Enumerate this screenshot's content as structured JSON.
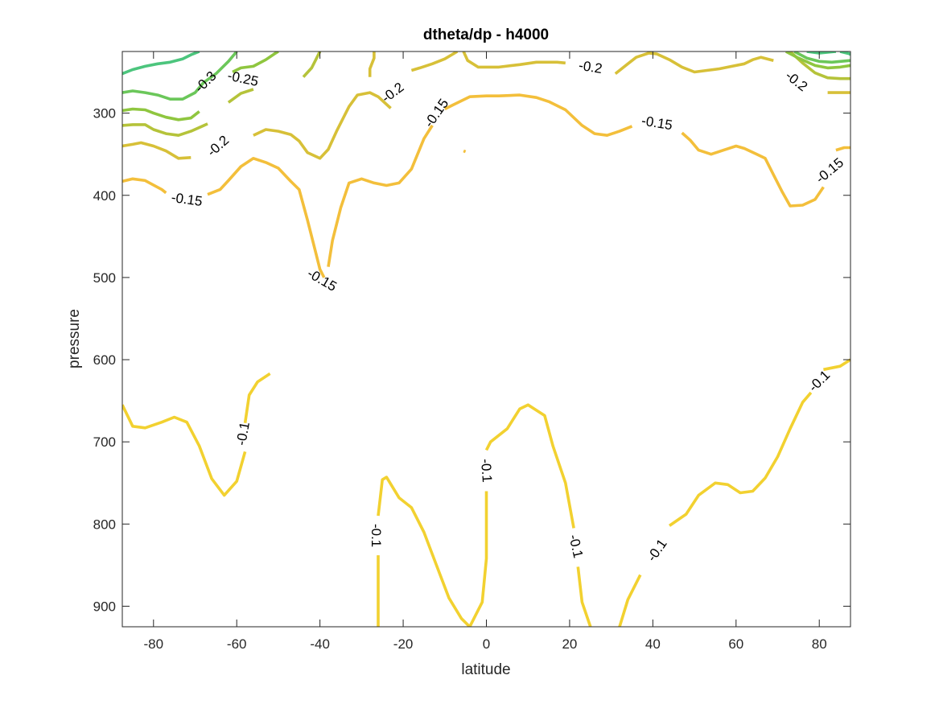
{
  "chart_data": {
    "type": "contour",
    "title": "dtheta/dp - h4000",
    "xlabel": "latitude",
    "ylabel": "pressure",
    "xlim": [
      -87.5,
      87.5
    ],
    "ylim": [
      225,
      925
    ],
    "y_reversed": true,
    "grid": false,
    "legend": "none",
    "x_ticks": [
      -80,
      -60,
      -40,
      -20,
      0,
      20,
      40,
      60,
      80
    ],
    "x_tick_labels": [
      "-80",
      "-60",
      "-40",
      "-20",
      "0",
      "20",
      "40",
      "60",
      "80"
    ],
    "y_ticks": [
      300,
      400,
      500,
      600,
      700,
      800,
      900
    ],
    "y_tick_labels": [
      "300",
      "400",
      "500",
      "600",
      "700",
      "800",
      "900"
    ],
    "colors": {
      "-0.1": "#f2d130",
      "-0.15": "#f3bf3b",
      "-0.2": "#d7c038",
      "-0.25": "#b5c33a",
      "-0.3": "#8fc63f",
      "-0.35": "#6bc75a",
      "-0.4": "#4cc57d"
    },
    "series": [
      {
        "level": -0.1,
        "points": [
          [
            -87.5,
            655
          ],
          [
            -85,
            681
          ],
          [
            -82,
            683
          ],
          [
            -78,
            676
          ],
          [
            -75,
            670
          ],
          [
            -72,
            676
          ],
          [
            -69,
            705
          ],
          [
            -66,
            745
          ],
          [
            -63,
            765
          ],
          [
            -60,
            748
          ],
          [
            -58,
            712
          ]
        ]
      },
      {
        "level": -0.1,
        "points": [
          [
            -58,
            677
          ],
          [
            -57,
            643
          ],
          [
            -55,
            627
          ],
          [
            -52,
            617
          ]
        ]
      },
      {
        "level": -0.1,
        "points": [
          [
            -26,
            925
          ],
          [
            -26,
            838
          ]
        ]
      },
      {
        "level": -0.1,
        "points": [
          [
            -26,
            790
          ],
          [
            -25,
            746
          ],
          [
            -24,
            743
          ],
          [
            -21,
            768
          ],
          [
            -18,
            780
          ],
          [
            -15,
            810
          ],
          [
            -12,
            850
          ],
          [
            -9,
            890
          ],
          [
            -6,
            915
          ],
          [
            -4,
            925
          ]
        ]
      },
      {
        "level": -0.1,
        "points": [
          [
            -4,
            925
          ],
          [
            -1,
            895
          ],
          [
            0,
            842
          ],
          [
            0,
            760
          ]
        ]
      },
      {
        "level": -0.1,
        "points": [
          [
            0,
            710
          ],
          [
            1,
            700
          ],
          [
            5,
            684
          ],
          [
            8,
            660
          ],
          [
            10,
            655
          ],
          [
            14,
            668
          ],
          [
            16,
            705
          ],
          [
            19,
            750
          ],
          [
            21,
            805
          ]
        ]
      },
      {
        "level": -0.1,
        "points": [
          [
            22,
            852
          ],
          [
            23,
            895
          ],
          [
            25,
            925
          ]
        ]
      },
      {
        "level": -0.1,
        "points": [
          [
            32,
            925
          ],
          [
            34,
            892
          ],
          [
            37,
            862
          ]
        ]
      },
      {
        "level": -0.1,
        "points": [
          [
            44,
            802
          ],
          [
            48,
            788
          ],
          [
            51,
            765
          ],
          [
            55,
            750
          ],
          [
            58,
            752
          ],
          [
            61,
            762
          ],
          [
            64,
            760
          ],
          [
            67,
            744
          ],
          [
            70,
            718
          ],
          [
            73,
            684
          ],
          [
            76,
            652
          ],
          [
            78,
            640
          ]
        ]
      },
      {
        "level": -0.1,
        "points": [
          [
            81,
            612
          ],
          [
            85,
            608
          ],
          [
            87.5,
            600
          ]
        ]
      },
      {
        "level": -0.15,
        "points": [
          [
            -87.5,
            383
          ],
          [
            -85,
            380
          ],
          [
            -82,
            382
          ],
          [
            -78,
            393
          ],
          [
            -77,
            397
          ]
        ]
      },
      {
        "level": -0.15,
        "points": [
          [
            -67,
            399
          ],
          [
            -64,
            393
          ],
          [
            -62,
            382
          ],
          [
            -59,
            365
          ],
          [
            -56,
            355
          ],
          [
            -53,
            360
          ],
          [
            -50,
            367
          ],
          [
            -47,
            383
          ],
          [
            -45,
            393
          ],
          [
            -43,
            430
          ],
          [
            -41,
            470
          ],
          [
            -40,
            490
          ],
          [
            -39,
            500
          ]
        ]
      },
      {
        "level": -0.15,
        "points": [
          [
            -38,
            487
          ],
          [
            -37,
            455
          ],
          [
            -35,
            415
          ],
          [
            -33,
            385
          ],
          [
            -30,
            380
          ],
          [
            -27,
            385
          ],
          [
            -24,
            388
          ],
          [
            -21,
            385
          ],
          [
            -18,
            368
          ],
          [
            -15,
            331
          ],
          [
            -13,
            315
          ]
        ]
      },
      {
        "level": -0.15,
        "points": [
          [
            -10,
            295
          ],
          [
            -8,
            290
          ],
          [
            -4,
            280
          ],
          [
            0,
            279
          ],
          [
            3,
            279
          ],
          [
            8,
            278
          ],
          [
            12,
            281
          ],
          [
            15,
            286
          ],
          [
            19,
            296
          ],
          [
            23,
            315
          ],
          [
            26,
            325
          ],
          [
            29,
            327
          ],
          [
            32,
            322
          ],
          [
            35,
            316
          ]
        ]
      },
      {
        "level": -0.15,
        "points": [
          [
            47,
            324
          ],
          [
            49,
            333
          ],
          [
            51,
            345
          ],
          [
            54,
            350
          ],
          [
            57,
            345
          ],
          [
            60,
            340
          ],
          [
            62,
            343
          ],
          [
            65,
            350
          ],
          [
            67,
            355
          ],
          [
            69,
            375
          ],
          [
            71,
            395
          ],
          [
            73,
            413
          ],
          [
            76,
            412
          ],
          [
            79,
            405
          ],
          [
            81,
            390
          ]
        ]
      },
      {
        "level": -0.15,
        "points": [
          [
            -5.5,
            346
          ],
          [
            -5,
            347
          ]
        ]
      },
      {
        "level": -0.15,
        "points": [
          [
            84,
            345
          ],
          [
            86,
            342
          ],
          [
            87.5,
            342
          ]
        ]
      },
      {
        "level": -0.2,
        "points": [
          [
            -87.5,
            340
          ],
          [
            -85,
            338
          ],
          [
            -83,
            336
          ],
          [
            -80,
            340
          ],
          [
            -77,
            346
          ],
          [
            -74,
            355
          ],
          [
            -71,
            354
          ]
        ]
      },
      {
        "level": -0.2,
        "points": [
          [
            -56,
            327
          ],
          [
            -53,
            320
          ],
          [
            -50,
            322
          ],
          [
            -47,
            326
          ],
          [
            -45,
            334
          ],
          [
            -43,
            348
          ],
          [
            -40,
            355
          ],
          [
            -38,
            344
          ],
          [
            -36,
            322
          ],
          [
            -33,
            292
          ],
          [
            -31,
            278
          ],
          [
            -28,
            275
          ],
          [
            -26,
            280
          ],
          [
            -23,
            294
          ]
        ]
      },
      {
        "level": -0.2,
        "points": [
          [
            -18,
            248
          ],
          [
            -16,
            245
          ],
          [
            -13,
            240
          ],
          [
            -10,
            234
          ],
          [
            -7,
            225
          ]
        ]
      },
      {
        "level": -0.2,
        "points": [
          [
            -5.5,
            225
          ],
          [
            -4.5,
            236
          ],
          [
            -2,
            244
          ],
          [
            3,
            244
          ],
          [
            8,
            241
          ],
          [
            12,
            238
          ],
          [
            17,
            238
          ],
          [
            19,
            239
          ]
        ]
      },
      {
        "level": -0.2,
        "points": [
          [
            31,
            252
          ],
          [
            34,
            240
          ],
          [
            36,
            232
          ],
          [
            39,
            227
          ],
          [
            41,
            228
          ],
          [
            44,
            235
          ],
          [
            47,
            244
          ],
          [
            50,
            250
          ],
          [
            53,
            248
          ],
          [
            56,
            246
          ],
          [
            59,
            243
          ],
          [
            62,
            240
          ],
          [
            64,
            235
          ],
          [
            66,
            232
          ],
          [
            69,
            236
          ]
        ]
      },
      {
        "level": -0.2,
        "points": [
          [
            82,
            275
          ],
          [
            85,
            275
          ],
          [
            87.5,
            275
          ]
        ]
      },
      {
        "level": -0.2,
        "points": [
          [
            -27,
            225
          ],
          [
            -27,
            233
          ],
          [
            -28,
            246
          ],
          [
            -28,
            256
          ]
        ]
      },
      {
        "level": -0.25,
        "points": [
          [
            -87.5,
            315
          ],
          [
            -85,
            314
          ],
          [
            -82,
            314
          ],
          [
            -80,
            320
          ],
          [
            -77,
            325
          ],
          [
            -74,
            327
          ],
          [
            -71,
            322
          ],
          [
            -67,
            313
          ]
        ]
      },
      {
        "level": -0.25,
        "points": [
          [
            -62,
            287
          ],
          [
            -59,
            276
          ],
          [
            -56,
            271
          ]
        ]
      },
      {
        "level": -0.25,
        "points": [
          [
            -44,
            256
          ],
          [
            -42,
            245
          ],
          [
            -41,
            235
          ],
          [
            -40,
            225
          ]
        ]
      },
      {
        "level": -0.25,
        "points": [
          [
            73,
            225
          ],
          [
            76,
            239
          ],
          [
            79,
            251
          ],
          [
            82,
            257
          ],
          [
            85,
            258
          ],
          [
            87.5,
            258
          ]
        ]
      },
      {
        "level": -0.3,
        "points": [
          [
            -87.5,
            297
          ],
          [
            -85,
            295
          ],
          [
            -82,
            296
          ],
          [
            -80,
            300
          ],
          [
            -77,
            305
          ],
          [
            -74,
            308
          ],
          [
            -71,
            306
          ],
          [
            -69,
            298
          ]
        ]
      },
      {
        "level": -0.3,
        "points": [
          [
            -61,
            250
          ],
          [
            -59,
            245
          ],
          [
            -56,
            243
          ],
          [
            -53,
            235
          ],
          [
            -51,
            228
          ],
          [
            -50,
            225
          ]
        ]
      },
      {
        "level": -0.3,
        "points": [
          [
            72,
            225
          ],
          [
            75,
            233
          ],
          [
            79,
            242
          ],
          [
            82,
            245
          ],
          [
            85,
            244
          ],
          [
            87.5,
            242
          ]
        ]
      },
      {
        "level": -0.35,
        "points": [
          [
            -87.5,
            275
          ],
          [
            -85,
            273
          ],
          [
            -82,
            275
          ],
          [
            -79,
            278
          ],
          [
            -76,
            283
          ],
          [
            -73,
            283
          ],
          [
            -70,
            275
          ],
          [
            -68,
            263
          ],
          [
            -65,
            252
          ],
          [
            -62,
            237
          ],
          [
            -60,
            225
          ]
        ]
      },
      {
        "level": -0.35,
        "points": [
          [
            74,
            225
          ],
          [
            77,
            233
          ],
          [
            80,
            237
          ],
          [
            83,
            238
          ],
          [
            87.5,
            236
          ]
        ]
      },
      {
        "level": -0.4,
        "points": [
          [
            -87.5,
            252
          ],
          [
            -85,
            247
          ],
          [
            -82,
            243
          ],
          [
            -79,
            240
          ],
          [
            -76,
            238
          ],
          [
            -73,
            234
          ],
          [
            -71,
            229
          ],
          [
            -69,
            225
          ]
        ]
      },
      {
        "level": -0.4,
        "points": [
          [
            77,
            225
          ],
          [
            80,
            227
          ],
          [
            84,
            225
          ]
        ]
      },
      {
        "level": -0.4,
        "points": [
          [
            85,
            225
          ],
          [
            87.5,
            228
          ],
          [
            87.5,
            230
          ]
        ]
      }
    ],
    "contour_labels": [
      {
        "text": "-0.3",
        "x": -67.5,
        "y": 262,
        "angle": -44
      },
      {
        "text": "-0.25",
        "x": -58.5,
        "y": 258,
        "angle": 12
      },
      {
        "text": "-0.2",
        "x": -64.5,
        "y": 340,
        "angle": -42
      },
      {
        "text": "-0.15",
        "x": -72,
        "y": 405,
        "angle": 8
      },
      {
        "text": "-0.15",
        "x": -39.5,
        "y": 503,
        "angle": 30
      },
      {
        "text": "-0.2",
        "x": -22.5,
        "y": 275,
        "angle": -37
      },
      {
        "text": "-0.15",
        "x": -12,
        "y": 300,
        "angle": -55
      },
      {
        "text": "-0.2",
        "x": 25,
        "y": 244,
        "angle": 9
      },
      {
        "text": "-0.15",
        "x": 41,
        "y": 312,
        "angle": 9
      },
      {
        "text": "-0.2",
        "x": 74.5,
        "y": 261,
        "angle": 38
      },
      {
        "text": "-0.15",
        "x": 82.5,
        "y": 370,
        "angle": -40
      },
      {
        "text": "-0.1",
        "x": -58.5,
        "y": 690,
        "angle": -80
      },
      {
        "text": "-0.1",
        "x": -26.5,
        "y": 814,
        "angle": 90
      },
      {
        "text": "-0.1",
        "x": 0,
        "y": 735,
        "angle": 86
      },
      {
        "text": "-0.1",
        "x": 21.5,
        "y": 827,
        "angle": 77
      },
      {
        "text": "-0.1",
        "x": 41,
        "y": 832,
        "angle": -55
      },
      {
        "text": "-0.1",
        "x": 80,
        "y": 626,
        "angle": -45
      }
    ]
  }
}
